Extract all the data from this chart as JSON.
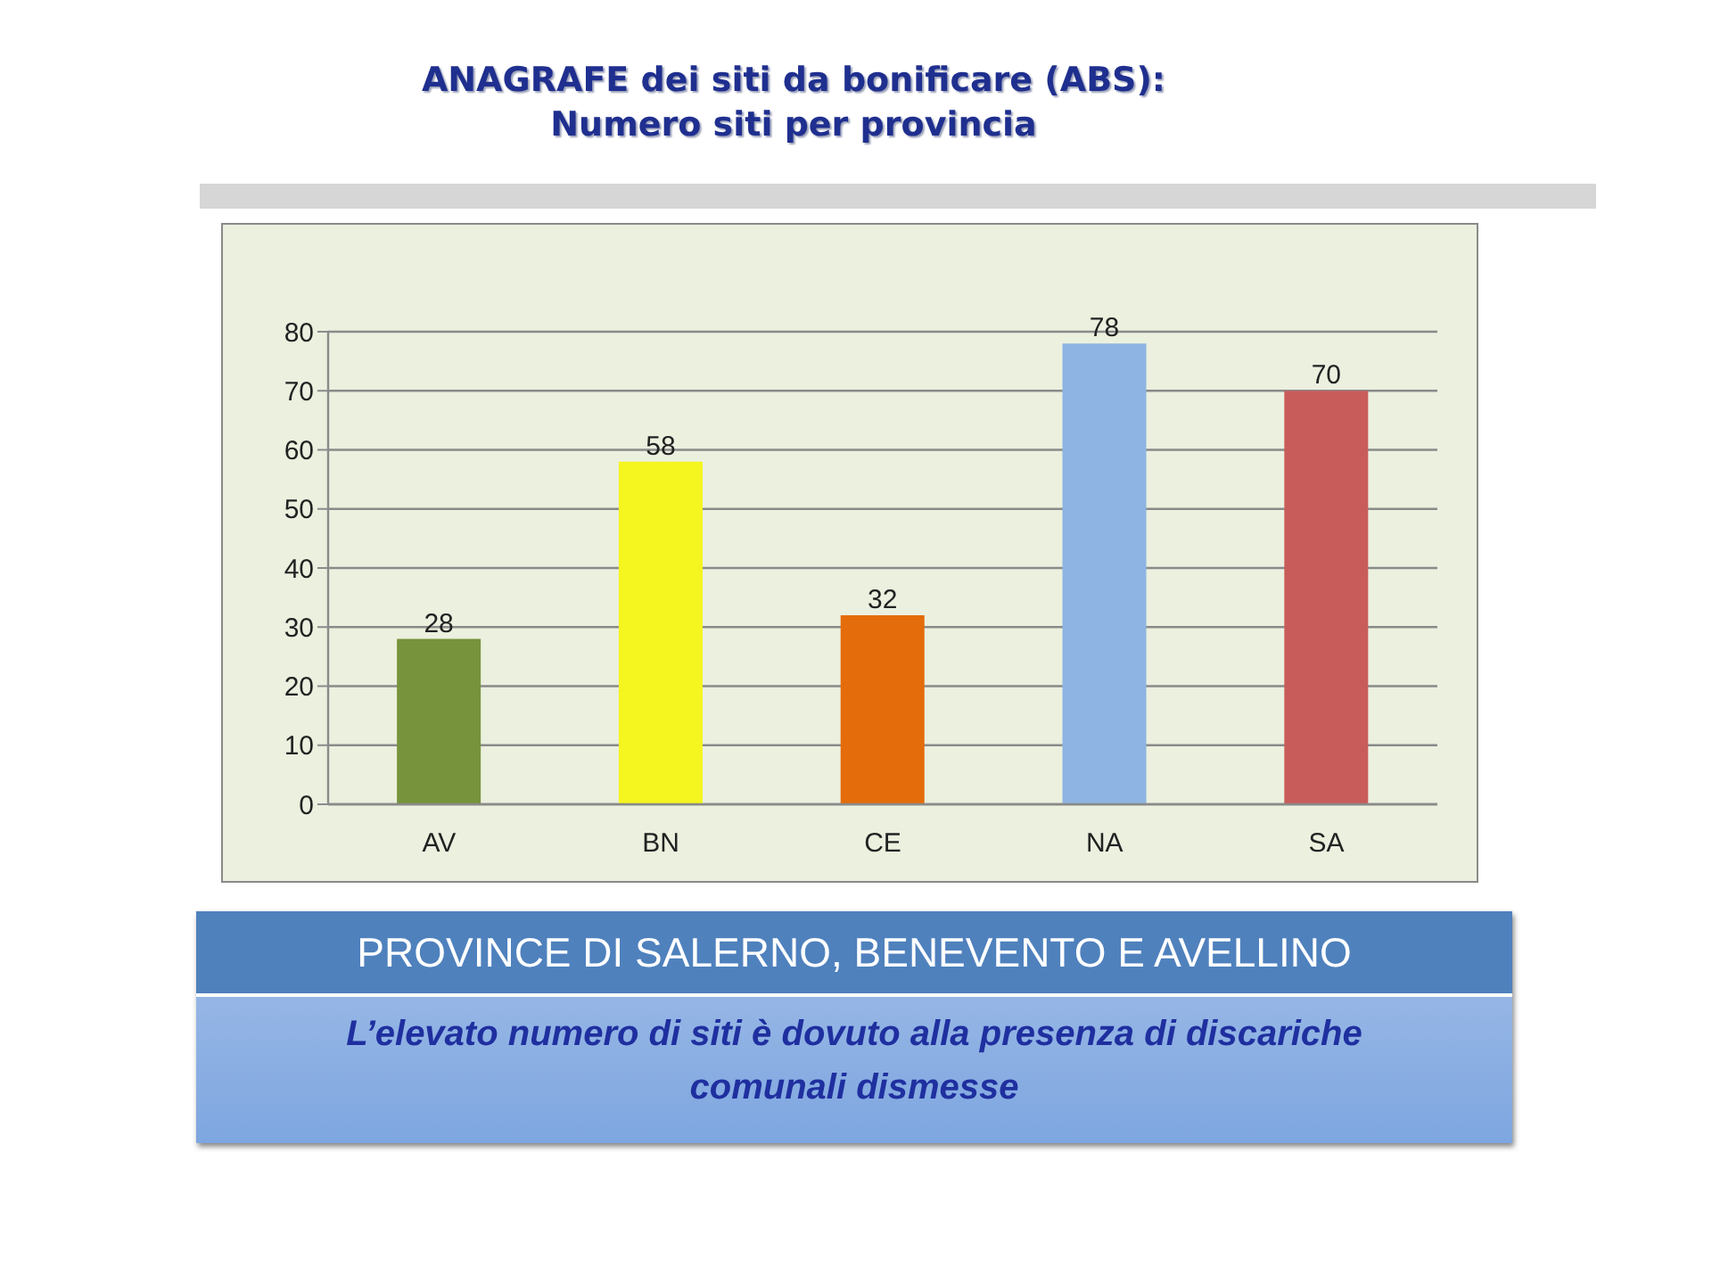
{
  "chart_data": {
    "type": "bar",
    "title": "ANAGRAFE dei siti da bonificare (ABS):\nNumero siti per provincia",
    "categories": [
      "AV",
      "BN",
      "CE",
      "NA",
      "SA"
    ],
    "values": [
      28,
      58,
      32,
      78,
      70
    ],
    "colors": [
      "#77933c",
      "#f5f51f",
      "#e46c0a",
      "#8eb4e3",
      "#c85c5a"
    ],
    "ylim": [
      0,
      80
    ],
    "yticks": [
      0,
      10,
      20,
      30,
      40,
      50,
      60,
      70,
      80
    ],
    "grid": "y",
    "data_labels": true,
    "annotations": [
      "PROVINCE DI SALERNO, BENEVENTO E AVELLINO",
      "L’elevato numero di siti è dovuto alla presenza di discariche comunali dismesse"
    ]
  }
}
